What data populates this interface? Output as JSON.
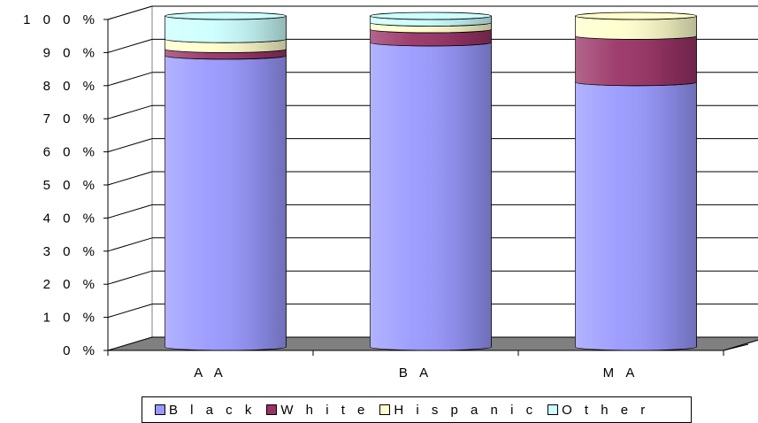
{
  "chart_data": {
    "type": "bar",
    "stacked": true,
    "percent": true,
    "categories": [
      "A A",
      "B A",
      "M A"
    ],
    "series": [
      {
        "name": "B l a c k",
        "color": "#9999ff",
        "values": [
          88,
          92,
          80
        ]
      },
      {
        "name": "W  h i t e",
        "color": "#993366",
        "values": [
          2,
          4,
          14
        ]
      },
      {
        "name": "H i s p a n i c",
        "color": "#ffffcc",
        "values": [
          3,
          2,
          6
        ]
      },
      {
        "name": "O t h e r",
        "color": "#ccffff",
        "values": [
          7,
          2,
          0
        ]
      }
    ],
    "yticks": [
      "0 %",
      "1 0 %",
      "2 0 %",
      "3 0 %",
      "4 0 %",
      "5 0 %",
      "6 0 %",
      "7 0 %",
      "8 0 %",
      "9 0 %",
      "1 0 0 %"
    ],
    "ylim": [
      0,
      100
    ],
    "grid": true,
    "legend_position": "bottom"
  }
}
